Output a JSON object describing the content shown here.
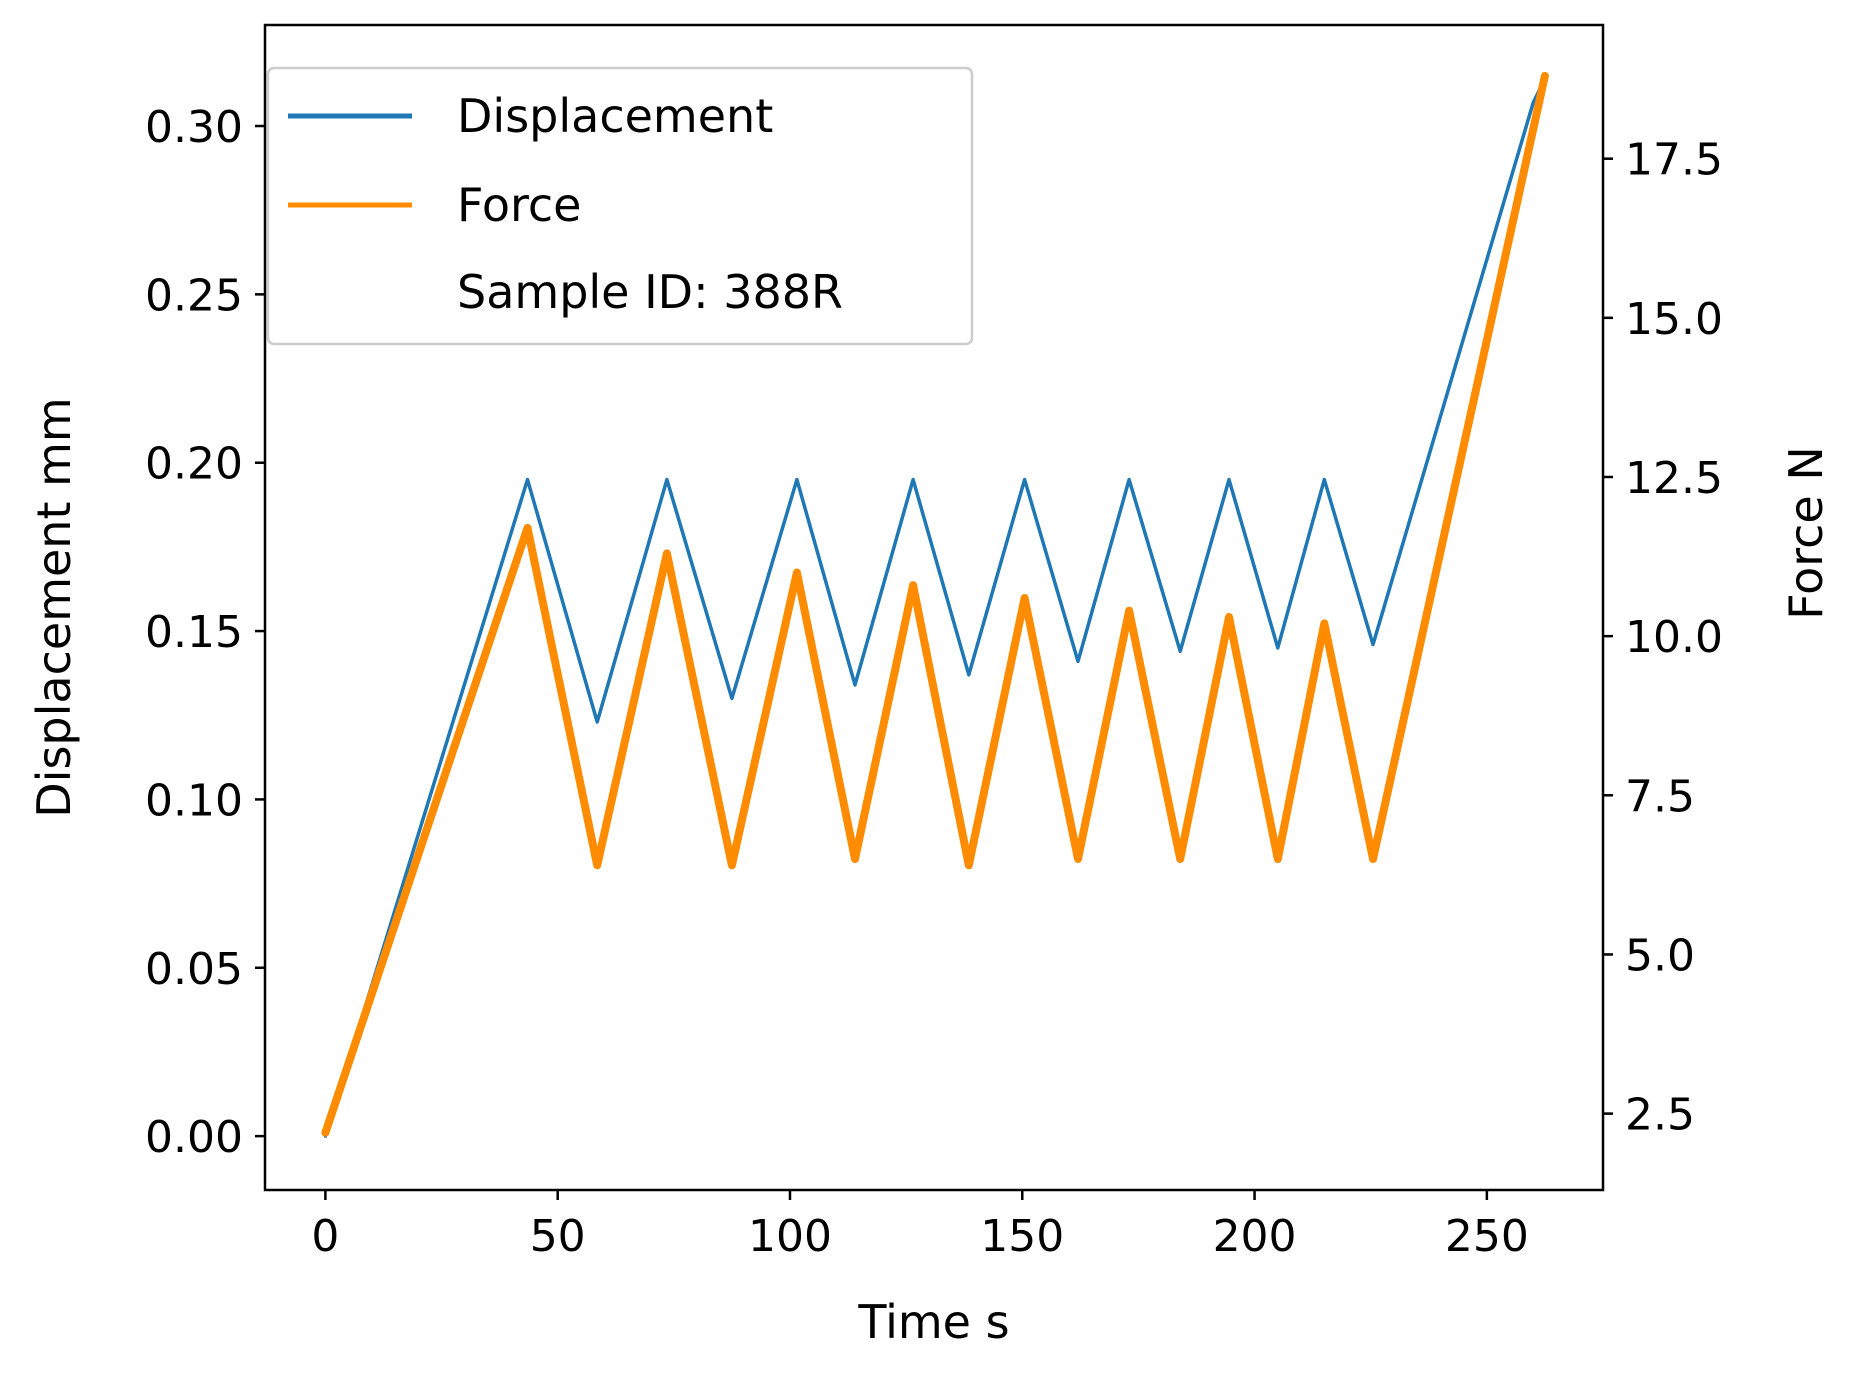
{
  "chart_data": {
    "type": "line",
    "xlabel": "Time s",
    "ylabel": "Displacement mm",
    "y2label": "Force N",
    "xlim": [
      -13,
      275
    ],
    "ylim": [
      -0.016,
      0.33
    ],
    "y2lim": [
      1.3,
      19.6
    ],
    "xticks": [
      0,
      50,
      100,
      150,
      200,
      250
    ],
    "yticks": [
      0.0,
      0.05,
      0.1,
      0.15,
      0.2,
      0.25,
      0.3
    ],
    "y2ticks": [
      2.5,
      5.0,
      7.5,
      10.0,
      12.5,
      15.0,
      17.5
    ],
    "legend": {
      "placement": "upper-left",
      "entries": [
        "Displacement",
        "Force",
        "Sample ID: 388R"
      ]
    },
    "series": [
      {
        "name": "Displacement",
        "axis": "left",
        "color": "#1f77b4",
        "x": [
          0,
          43.5,
          58.5,
          73.5,
          87.5,
          101.5,
          114,
          126.5,
          138.5,
          150.5,
          162,
          173,
          184,
          194.5,
          205,
          215,
          225.5,
          260,
          262.5
        ],
        "y": [
          0.0,
          0.195,
          0.123,
          0.195,
          0.13,
          0.195,
          0.134,
          0.195,
          0.137,
          0.195,
          0.141,
          0.195,
          0.144,
          0.195,
          0.145,
          0.195,
          0.146,
          0.307,
          0.314
        ]
      },
      {
        "name": "Force",
        "axis": "right",
        "color": "#ff8c00",
        "x": [
          0,
          43.5,
          58.5,
          73.5,
          87.5,
          101.5,
          114,
          126.5,
          138.5,
          150.5,
          162,
          173,
          184,
          194.5,
          205,
          215,
          225.5,
          262.5
        ],
        "y": [
          2.2,
          11.7,
          6.4,
          11.3,
          6.4,
          11.0,
          6.5,
          10.8,
          6.4,
          10.6,
          6.5,
          10.4,
          6.5,
          10.3,
          6.5,
          10.2,
          6.5,
          18.8
        ]
      }
    ]
  }
}
